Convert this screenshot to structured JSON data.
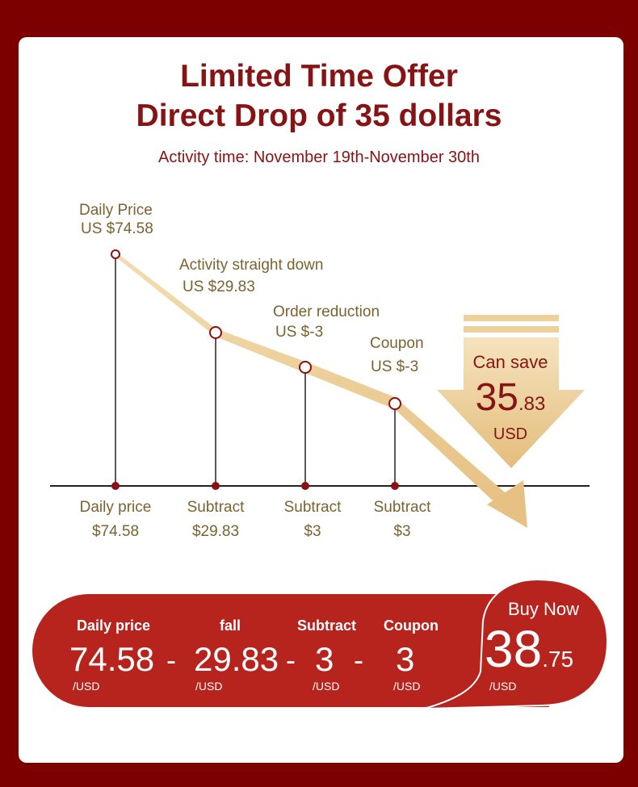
{
  "header": {
    "title_line1": "Limited Time Offer",
    "title_line2": "Direct Drop of 35 dollars",
    "activity_time": "Activity time: November 19th-November 30th"
  },
  "chart_data": {
    "type": "line",
    "points": [
      {
        "label": "Daily Price",
        "price": "US $74.58",
        "axis_label": "Daily price",
        "axis_value": "$74.58"
      },
      {
        "label": "Activity straight down",
        "price": "US $29.83",
        "axis_label": "Subtract",
        "axis_value": "$29.83"
      },
      {
        "label": "Order reduction",
        "price": "US $-3",
        "axis_label": "Subtract",
        "axis_value": "$3"
      },
      {
        "label": "Coupon",
        "price": "US $-3",
        "axis_label": "Subtract",
        "axis_value": "$3"
      }
    ]
  },
  "savings": {
    "label": "Can save",
    "amount_int": "35",
    "amount_dec": ".83",
    "currency": "USD"
  },
  "breakdown": {
    "headers": [
      "Daily price",
      "fall",
      "Subtract",
      "Coupon"
    ],
    "values": [
      "74.58",
      "29.83",
      "3",
      "3"
    ],
    "unit": "/USD",
    "operator": "-",
    "buy_label": "Buy Now",
    "final_int": "38",
    "final_dec": ".75"
  },
  "colors": {
    "background": "#7d0000",
    "title": "#861414",
    "gold": "#e9c98a",
    "pill": "#b7231d"
  }
}
